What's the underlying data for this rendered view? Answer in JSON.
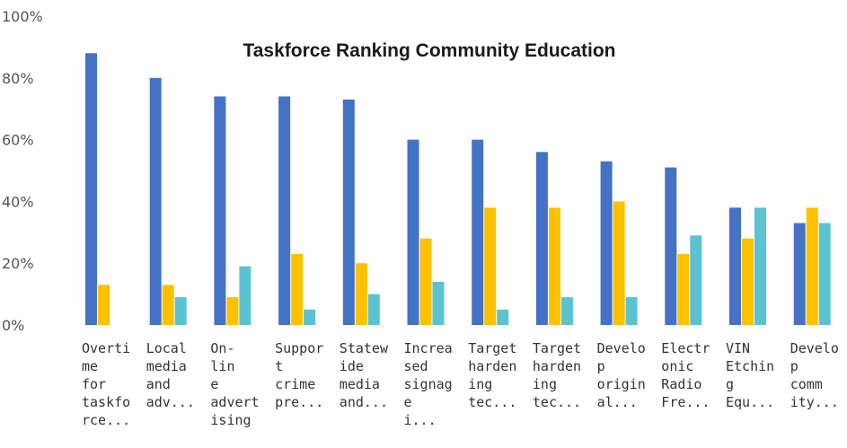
{
  "chart_data": {
    "type": "bar",
    "title": "Taskforce Ranking Community Education",
    "xlabel": "",
    "ylabel": "",
    "ylim": [
      0,
      100
    ],
    "yticks": [
      "100%",
      "80%",
      "60%",
      "40%",
      "20%",
      "0%"
    ],
    "grid": false,
    "legend": "none",
    "categories": [
      [
        "Overti",
        "me",
        "for",
        "taskfo",
        "rce..."
      ],
      [
        "Local",
        "media",
        "and",
        "adv..."
      ],
      [
        "On-",
        "lin",
        "e",
        "advert",
        "ising"
      ],
      [
        "Suppor",
        "t",
        "crime",
        "pre..."
      ],
      [
        "Statew",
        "ide",
        "media",
        "and..."
      ],
      [
        "Increa",
        "sed",
        "signag",
        "e",
        "i..."
      ],
      [
        "Target",
        "harden",
        "ing",
        "tec..."
      ],
      [
        "Target",
        "harden",
        "ing",
        "tec..."
      ],
      [
        "Develo",
        "p",
        "origin",
        "al..."
      ],
      [
        "Electr",
        "onic",
        "Radio",
        "Fre..."
      ],
      [
        "VIN",
        "Etchin",
        "g",
        "Equ..."
      ],
      [
        "Develo",
        "p",
        "comm",
        "ity..."
      ]
    ],
    "series": [
      {
        "color": "#4472c4",
        "values": [
          88,
          80,
          74,
          74,
          73,
          60,
          60,
          56,
          53,
          51,
          38,
          33
        ]
      },
      {
        "color": "#ffc000",
        "values": [
          13,
          13,
          9,
          23,
          20,
          28,
          38,
          38,
          40,
          23,
          28,
          38
        ]
      },
      {
        "color": "#5bc3d0",
        "values": [
          0,
          9,
          19,
          5,
          10,
          14,
          5,
          9,
          9,
          29,
          38,
          33
        ]
      }
    ]
  }
}
